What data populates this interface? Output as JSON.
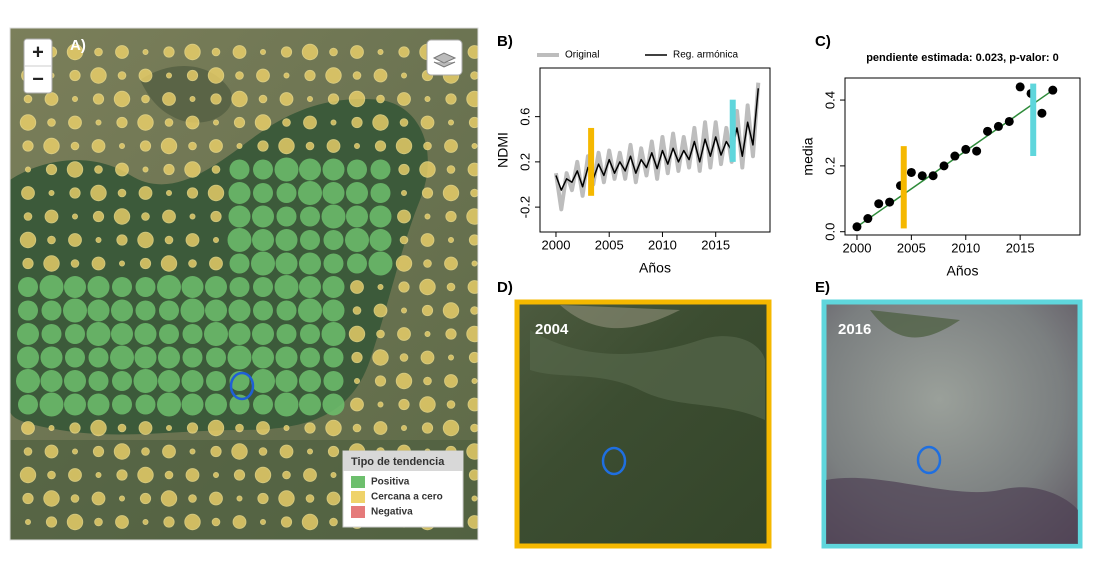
{
  "panels": [
    "A)",
    "B)",
    "C)",
    "D)",
    "E)"
  ],
  "map": {
    "zoom_in": "+",
    "zoom_out": "−",
    "legend_title": "Tipo de tendencia",
    "legend": [
      {
        "label": "Positiva",
        "color": "#6dbf6d"
      },
      {
        "label": "Cercana a cero",
        "color": "#efd36a"
      },
      {
        "label": "Negativa",
        "color": "#e57a7a"
      }
    ]
  },
  "chart_data": [
    {
      "type": "line",
      "ylabel": "NDMI",
      "xlabel": "Años",
      "xlim": [
        1998.5,
        2020.1
      ],
      "ylim": [
        -0.42,
        1.03
      ],
      "xticks": [
        2000,
        2005,
        2010,
        2015
      ],
      "yticks": [
        -0.2,
        0.2,
        0.6
      ],
      "x": [
        2000,
        2000.5,
        2001,
        2001.5,
        2002,
        2002.5,
        2003,
        2003.5,
        2004,
        2004.5,
        2005,
        2005.5,
        2006,
        2006.5,
        2007,
        2007.5,
        2008,
        2008.5,
        2009,
        2009.5,
        2010,
        2010.5,
        2011,
        2011.5,
        2012,
        2012.5,
        2013,
        2013.5,
        2014,
        2014.5,
        2015,
        2015.5,
        2016,
        2016.5,
        2017,
        2017.5,
        2018,
        2018.5,
        2019
      ],
      "series": [
        {
          "name": "Original",
          "color": "#bdbdbd",
          "values": [
            0.1,
            -0.22,
            0.1,
            -0.05,
            0.2,
            -0.1,
            0.25,
            0.0,
            0.28,
            0.02,
            0.3,
            0.05,
            0.28,
            0.05,
            0.35,
            0.02,
            0.32,
            0.08,
            0.38,
            0.05,
            0.42,
            0.1,
            0.45,
            0.12,
            0.42,
            0.15,
            0.5,
            0.12,
            0.55,
            0.15,
            0.55,
            0.18,
            0.5,
            0.2,
            0.65,
            0.15,
            0.7,
            0.25,
            0.9
          ]
        },
        {
          "name": "Reg. armónica",
          "color": "#000000",
          "values": [
            0.08,
            -0.05,
            0.05,
            0.02,
            0.12,
            -0.02,
            0.15,
            0.05,
            0.18,
            0.08,
            0.22,
            0.1,
            0.2,
            0.12,
            0.25,
            0.1,
            0.22,
            0.15,
            0.28,
            0.14,
            0.3,
            0.18,
            0.32,
            0.2,
            0.3,
            0.22,
            0.38,
            0.2,
            0.4,
            0.25,
            0.42,
            0.26,
            0.38,
            0.3,
            0.5,
            0.25,
            0.55,
            0.35,
            0.85
          ]
        }
      ],
      "markers": [
        {
          "x": 2003.3,
          "y": [
            -0.1,
            0.5
          ],
          "color": "#f5b800"
        },
        {
          "x": 2016.6,
          "y": [
            0.2,
            0.75
          ],
          "color": "#5fd6dc"
        }
      ]
    },
    {
      "type": "scatter",
      "title": "pendiente estimada: 0.023,  p-valor: 0",
      "ylabel": "media",
      "xlabel": "Años",
      "xlim": [
        1998.9,
        2020.5
      ],
      "ylim": [
        -0.01,
        0.467
      ],
      "xticks": [
        2000,
        2005,
        2010,
        2015
      ],
      "yticks": [
        {
          "value": 0,
          "label": "0.0"
        },
        0.2,
        0.4
      ],
      "x": [
        2000,
        2001,
        2002,
        2003,
        2004,
        2005,
        2006,
        2007,
        2008,
        2009,
        2010,
        2011,
        2012,
        2013,
        2014,
        2015,
        2016,
        2017,
        2018
      ],
      "values": [
        0.015,
        0.04,
        0.085,
        0.09,
        0.14,
        0.18,
        0.17,
        0.17,
        0.2,
        0.23,
        0.25,
        0.245,
        0.305,
        0.32,
        0.335,
        0.44,
        0.42,
        0.36,
        0.43
      ],
      "color": "#000000",
      "fit": {
        "x": [
          2000,
          2018
        ],
        "y": [
          0.015,
          0.43
        ],
        "color": "#2e8b3a"
      },
      "markers": [
        {
          "x": 2004.3,
          "y": [
            0.01,
            0.26
          ],
          "color": "#f5b800"
        },
        {
          "x": 2016.2,
          "y": [
            0.23,
            0.45
          ],
          "color": "#5fd6dc"
        }
      ]
    }
  ],
  "photos": [
    {
      "label": "2004",
      "border": "#f5b800"
    },
    {
      "label": "2016",
      "border": "#5fd6dc"
    }
  ]
}
